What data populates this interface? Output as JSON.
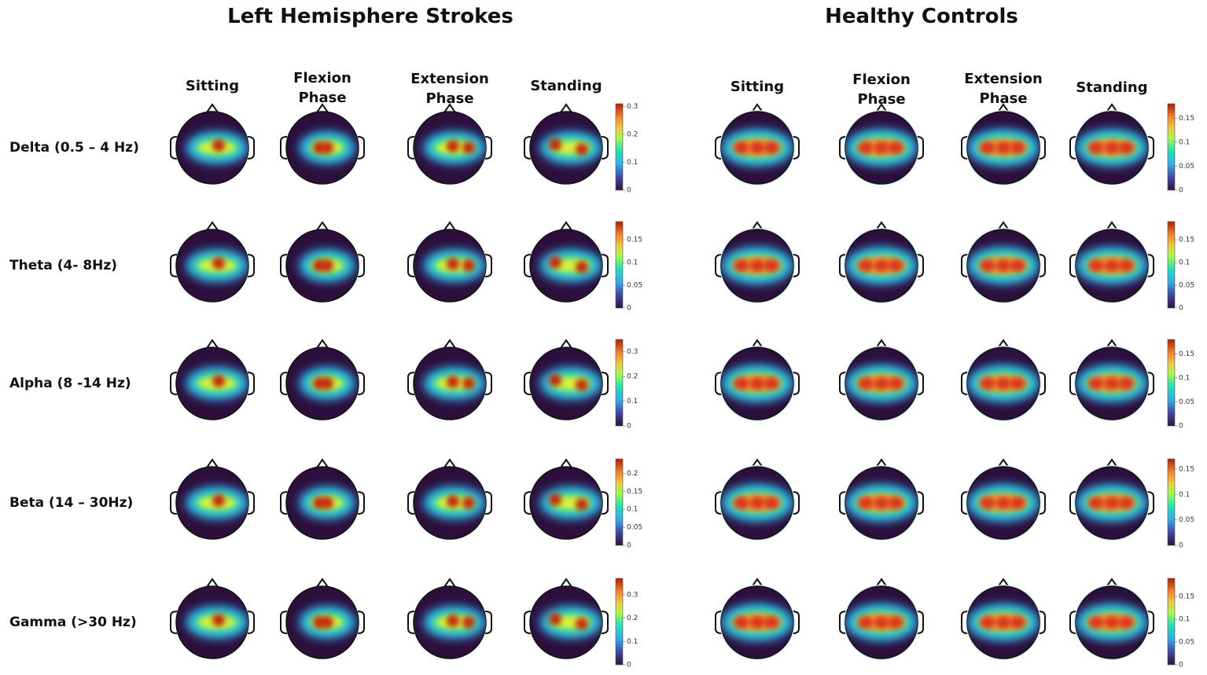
{
  "rows": [
    "Delta (0.5 – 4 Hz)",
    "Theta (4- 8Hz)",
    "Alpha (8 -14 Hz)",
    "Beta (14 – 30Hz)",
    "Gamma (>30 Hz)"
  ],
  "groups": [
    {
      "title": "Left Hemisphere Strokes",
      "columns": [
        "Sitting",
        "Flexion Phase",
        "Extension Phase",
        "Standing"
      ],
      "colorbars": [
        {
          "lim": [
            0,
            0.31
          ],
          "ticks": [
            0,
            0.1,
            0.2,
            0.3
          ]
        },
        {
          "lim": [
            0,
            0.19
          ],
          "ticks": [
            0,
            0.05,
            0.1,
            0.15
          ]
        },
        {
          "lim": [
            0,
            0.35
          ],
          "ticks": [
            0,
            0.1,
            0.2,
            0.3
          ]
        },
        {
          "lim": [
            0,
            0.24
          ],
          "ticks": [
            0,
            0.05,
            0.1,
            0.15,
            0.2
          ]
        },
        {
          "lim": [
            0,
            0.37
          ],
          "ticks": [
            0,
            0.1,
            0.2,
            0.3
          ]
        }
      ]
    },
    {
      "title": "Healthy Controls",
      "columns": [
        "Sitting",
        "Flexion Phase",
        "Extension Phase",
        "Standing"
      ],
      "colorbars": [
        {
          "lim": [
            0,
            0.18
          ],
          "ticks": [
            0,
            0.05,
            0.1,
            0.15
          ]
        },
        {
          "lim": [
            0,
            0.19
          ],
          "ticks": [
            0,
            0.05,
            0.1,
            0.15
          ]
        },
        {
          "lim": [
            0,
            0.18
          ],
          "ticks": [
            0,
            0.05,
            0.1,
            0.15
          ]
        },
        {
          "lim": [
            0,
            0.17
          ],
          "ticks": [
            0,
            0.05,
            0.1,
            0.15
          ]
        },
        {
          "lim": [
            0,
            0.19
          ],
          "ticks": [
            0,
            0.05,
            0.1,
            0.15
          ]
        }
      ]
    }
  ]
}
